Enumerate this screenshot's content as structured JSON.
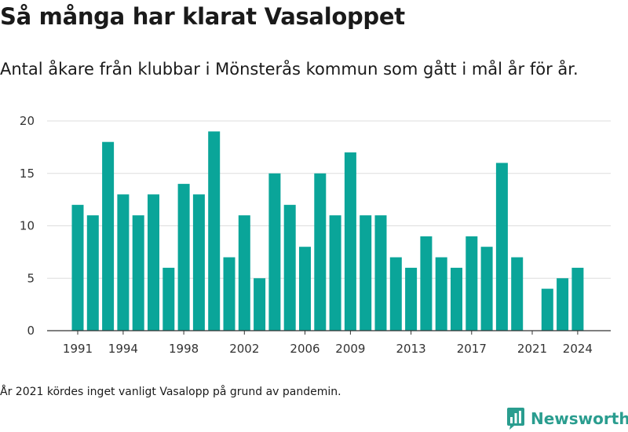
{
  "title": "Så många har klarat Vasaloppet",
  "subtitle": "Antal åkare från klubbar i Mönsterås kommun som gått i mål år för år.",
  "footnote": "År 2021 kördes inget vanligt Vasalopp på grund av pandemin.",
  "logo": {
    "text": "Newsworthy",
    "icon": "newsworthy-logo-icon"
  },
  "colors": {
    "bar": "#0aa599",
    "grid": "#dddddd",
    "axis": "#333333",
    "brand": "#2a9d8f"
  },
  "chart_data": {
    "type": "bar",
    "x": [
      1991,
      1992,
      1993,
      1994,
      1995,
      1996,
      1997,
      1998,
      1999,
      2000,
      2001,
      2002,
      2003,
      2004,
      2005,
      2006,
      2007,
      2008,
      2009,
      2010,
      2011,
      2012,
      2013,
      2014,
      2015,
      2016,
      2017,
      2018,
      2019,
      2020,
      2021,
      2022,
      2023,
      2024
    ],
    "values": [
      12,
      11,
      18,
      13,
      11,
      13,
      6,
      14,
      13,
      19,
      7,
      11,
      5,
      15,
      12,
      8,
      15,
      11,
      17,
      11,
      11,
      7,
      6,
      9,
      7,
      6,
      9,
      8,
      16,
      7,
      null,
      4,
      5,
      6
    ],
    "x_tick_labels": [
      "1991",
      "1994",
      "1998",
      "2002",
      "2006",
      "2009",
      "2013",
      "2017",
      "2021",
      "2024"
    ],
    "y_ticks": [
      0,
      5,
      10,
      15,
      20
    ],
    "ylim": [
      0,
      20
    ],
    "grid": true,
    "legend": "none"
  }
}
